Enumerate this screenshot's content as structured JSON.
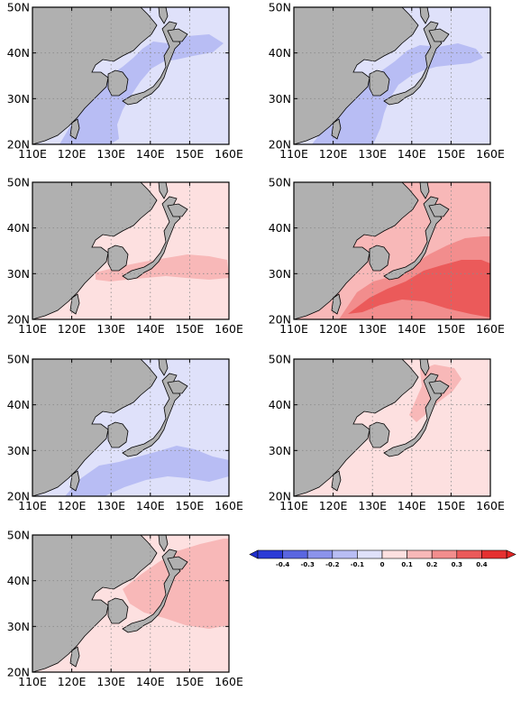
{
  "axes": {
    "lon_ticks": [
      "110E",
      "120E",
      "130E",
      "140E",
      "150E",
      "160E"
    ],
    "lat_ticks": [
      "20N",
      "30N",
      "40N",
      "50N"
    ],
    "lon_range": [
      110,
      160
    ],
    "lat_range": [
      20,
      50
    ],
    "grid": "dotted"
  },
  "colorbar": {
    "labels": [
      "-0.4",
      "-0.3",
      "-0.2",
      "-0.1",
      "0",
      "0.1",
      "0.2",
      "0.3",
      "0.4"
    ],
    "colors": [
      "#2b3bd6",
      "#5a66e0",
      "#8b93ec",
      "#b8bdf4",
      "#dfe1fa",
      "#fde0e0",
      "#f8b8b8",
      "#f28d8d",
      "#eb5a5a",
      "#e53030"
    ],
    "arrow_left": "#1f2fcf",
    "arrow_right": "#e52424"
  },
  "palette": {
    "land": "#b0b0b0",
    "ocean_neutral": "#ffffff",
    "vl_blue": "#dfe1fa",
    "l_blue": "#b8bdf4",
    "m_blue": "#8b93ec",
    "d_blue": "#5a66e0",
    "vl_red": "#fde0e0",
    "l_red": "#f8b8b8",
    "m_red": "#f28d8d",
    "d_red": "#eb5a5a",
    "dd_red": "#e53030"
  },
  "panels": [
    {
      "id": "panel-1",
      "base": "vl_blue",
      "overlays": [
        "p1_blue_band"
      ]
    },
    {
      "id": "panel-2",
      "base": "vl_blue",
      "overlays": [
        "p2_blue_band"
      ]
    },
    {
      "id": "panel-3",
      "base": "vl_red",
      "overlays": [
        "p3_red_band"
      ]
    },
    {
      "id": "panel-4",
      "base": "l_red",
      "overlays": [
        "p4_red_band",
        "p4_dark_band"
      ]
    },
    {
      "id": "panel-5",
      "base": "vl_blue",
      "overlays": [
        "p5_blue_band"
      ]
    },
    {
      "id": "panel-6",
      "base": "vl_red",
      "overlays": [
        "p6_red_patch"
      ]
    },
    {
      "id": "panel-7",
      "base": "vl_red",
      "overlays": [
        "p7_red_band"
      ]
    }
  ]
}
